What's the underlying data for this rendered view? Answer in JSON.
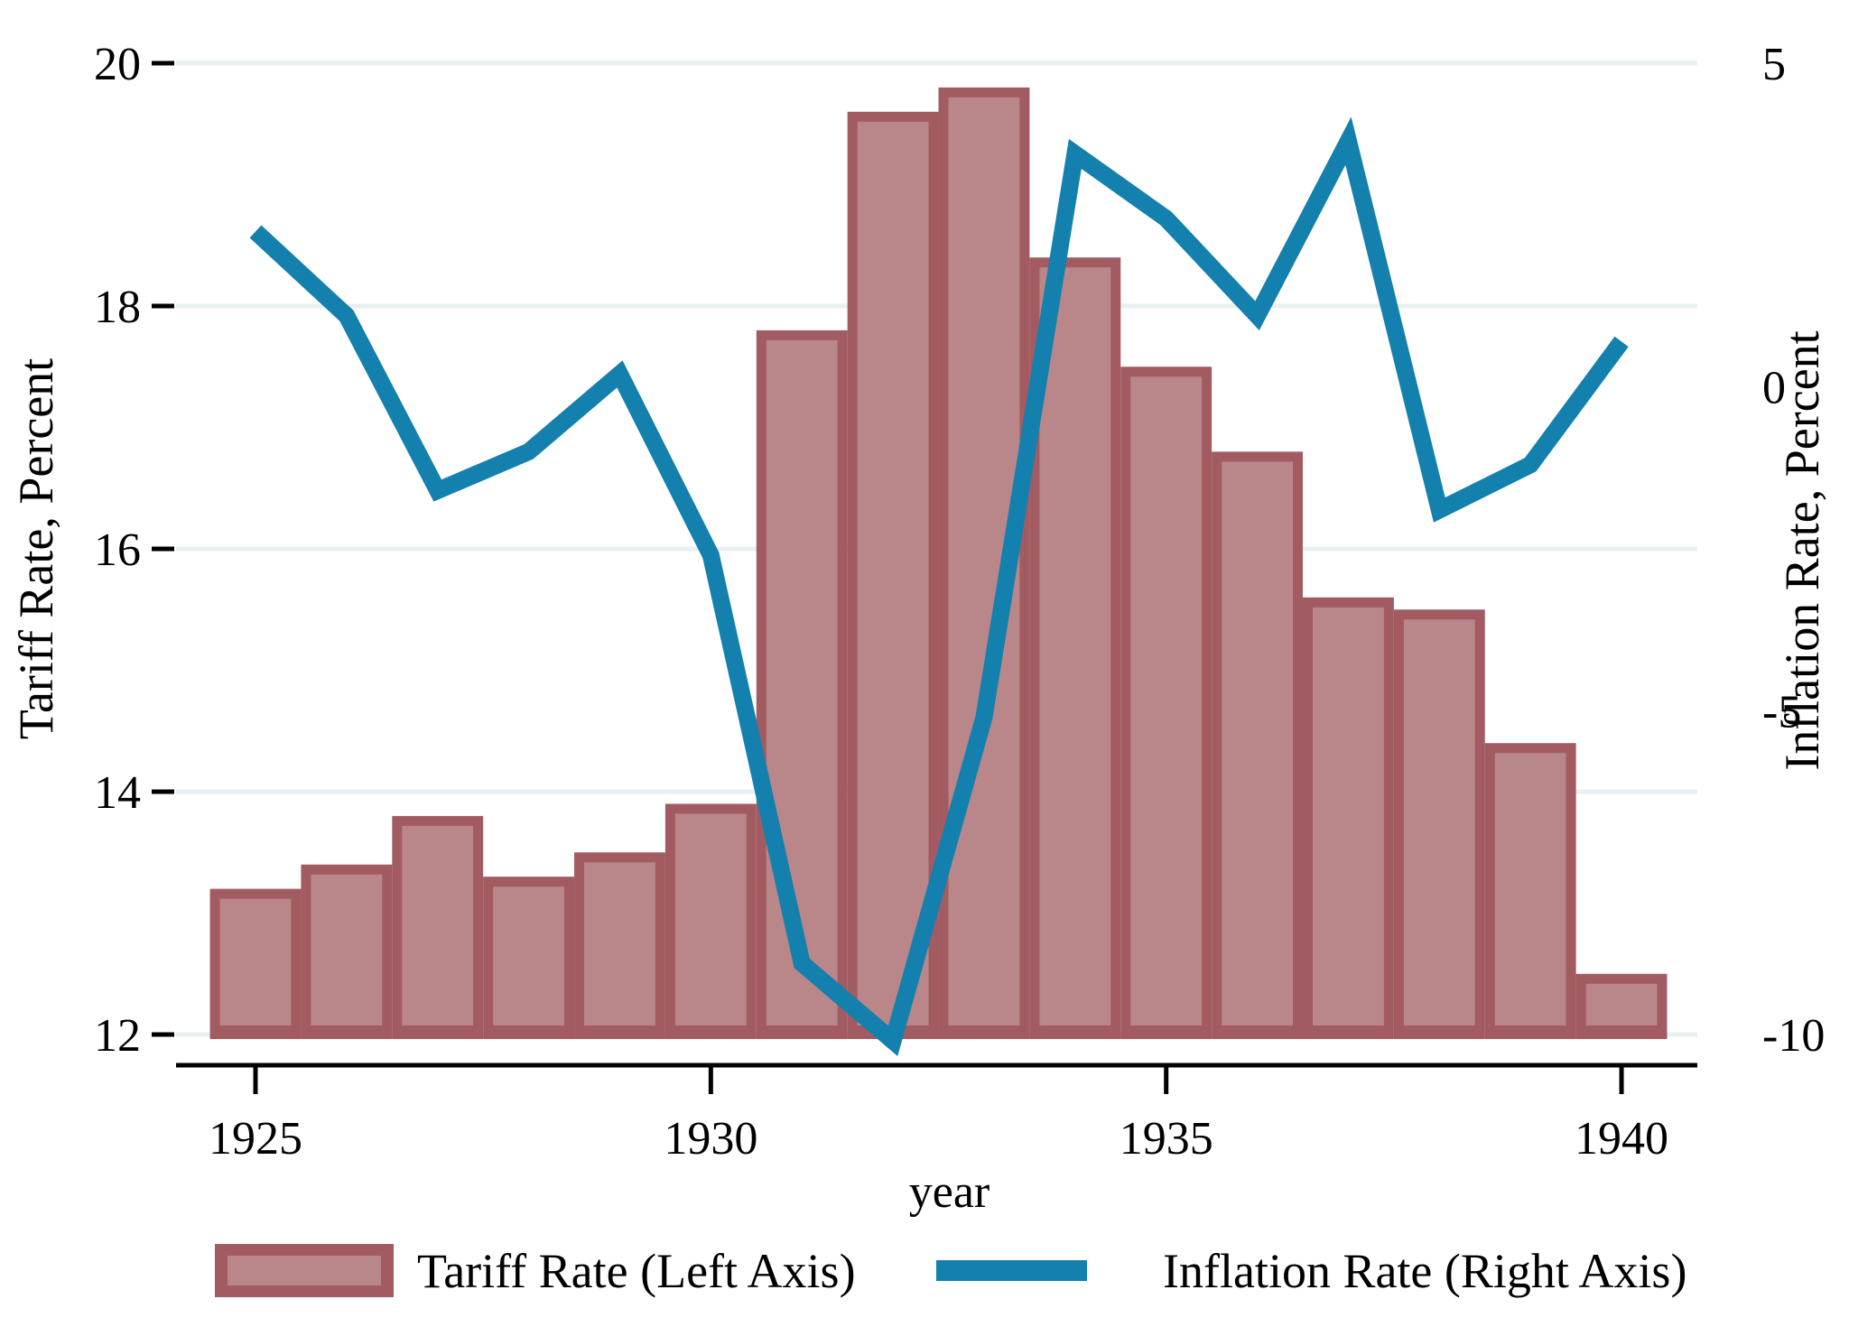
{
  "figure": {
    "background": "#ffffff",
    "text_color": "#000000",
    "gridline_color": "#e8f0f2",
    "axis_color": "#000000"
  },
  "chart_data": {
    "type": "bar+line dual-axis",
    "x": [
      1925,
      1926,
      1927,
      1928,
      1929,
      1930,
      1931,
      1932,
      1933,
      1934,
      1935,
      1936,
      1937,
      1938,
      1939,
      1940
    ],
    "series": [
      {
        "name": "Tariff Rate (Left Axis)",
        "type": "bar",
        "axis": "left",
        "fill": "#b9868a",
        "border": "#a25b61",
        "values": [
          13.2,
          13.4,
          13.8,
          13.3,
          13.5,
          13.9,
          17.8,
          19.6,
          19.8,
          18.4,
          17.5,
          16.8,
          15.6,
          15.5,
          14.4,
          12.5
        ]
      },
      {
        "name": "Inflation Rate (Right Axis)",
        "type": "line",
        "axis": "right",
        "color": "#1480ad",
        "values": [
          2.4,
          1.1,
          -1.6,
          -1.0,
          0.2,
          -2.6,
          -8.9,
          -10.1,
          -5.1,
          3.6,
          2.6,
          1.1,
          3.8,
          -1.9,
          -1.2,
          0.7
        ]
      }
    ],
    "left_axis": {
      "title": "Tariff Rate, Percent",
      "ticks": [
        20,
        18,
        16,
        14,
        12
      ],
      "min": 12,
      "max": 20
    },
    "right_axis": {
      "title": "Inflation Rate, Percent",
      "ticks": [
        5,
        0,
        -5,
        -10
      ],
      "min": -10.5,
      "max": 5.5
    },
    "x_axis": {
      "title": "year",
      "ticks": [
        1925,
        1930,
        1935,
        1940
      ]
    },
    "grid": "horizontal, on",
    "legend": {
      "position": "bottom",
      "entries": [
        {
          "swatch": "bar",
          "label": "Tariff Rate (Left Axis)"
        },
        {
          "swatch": "line",
          "label": "Inflation Rate (Right Axis)"
        }
      ]
    }
  }
}
